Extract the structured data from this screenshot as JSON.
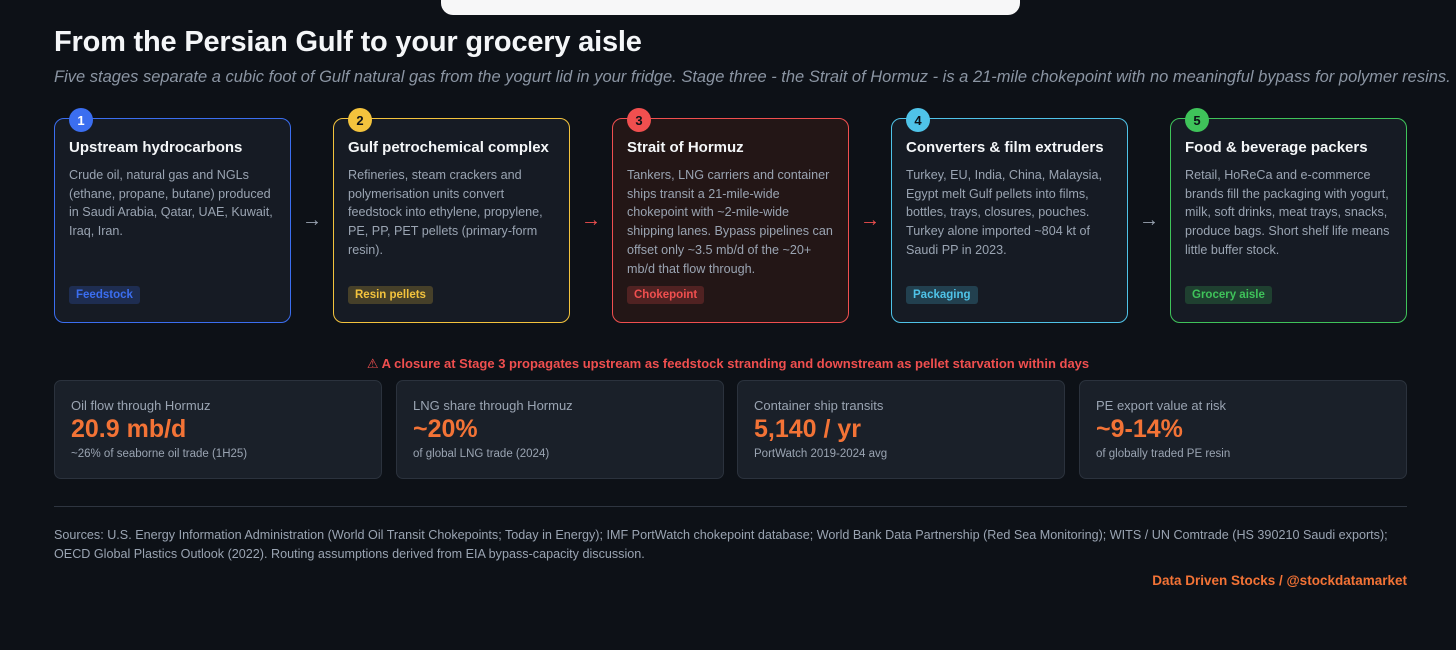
{
  "title": "From the Persian Gulf to your grocery aisle",
  "subtitle": "Five stages separate a cubic foot of Gulf natural gas from the yogurt lid in your fridge. Stage three - the Strait of Hormuz - is a 21-mile chokepoint with no meaningful bypass for polymer resins.",
  "stages": [
    {
      "number": "1",
      "title": "Upstream hydrocarbons",
      "description": "Crude oil, natural gas and NGLs (ethane, propane, butane) produced in Saudi Arabia, Qatar, UAE, Kuwait, Iraq, Iran.",
      "tag": "Feedstock",
      "color": "#3b6ef0"
    },
    {
      "number": "2",
      "title": "Gulf petrochemical complex",
      "description": "Refineries, steam crackers and polymerisation units convert feedstock into ethylene, propylene, PE, PP, PET pellets (primary-form resin).",
      "tag": "Resin pellets",
      "color": "#f3c33d"
    },
    {
      "number": "3",
      "title": "Strait of Hormuz",
      "description": "Tankers, LNG carriers and container ships transit a 21-mile-wide chokepoint with ~2-mile-wide shipping lanes. Bypass pipelines can offset only ~3.5 mb/d of the ~20+ mb/d that flow through.",
      "tag": "Chokepoint",
      "color": "#f04f4f"
    },
    {
      "number": "4",
      "title": "Converters & film extruders",
      "description": "Turkey, EU, India, China, Malaysia, Egypt melt Gulf pellets into films, bottles, trays, closures, pouches. Turkey alone imported ~804 kt of Saudi PP in 2023.",
      "tag": "Packaging",
      "color": "#4fc3e8"
    },
    {
      "number": "5",
      "title": "Food & beverage packers",
      "description": "Retail, HoReCa and e-commerce brands fill the packaging with yogurt, milk, soft drinks, meat trays, snacks, produce bags. Short shelf life means little buffer stock.",
      "tag": "Grocery aisle",
      "color": "#3fc35a"
    }
  ],
  "arrows": [
    {
      "glyph": "→",
      "color": "#9aa4b2"
    },
    {
      "glyph": "→",
      "color": "#f04f4f"
    },
    {
      "glyph": "→",
      "color": "#f04f4f"
    },
    {
      "glyph": "→",
      "color": "#9aa4b2"
    }
  ],
  "warning": "⚠ A closure at Stage 3 propagates upstream as feedstock stranding and downstream as pellet starvation within days",
  "stats": [
    {
      "label": "Oil flow through Hormuz",
      "value": "20.9 mb/d",
      "note": "~26% of seaborne oil trade (1H25)"
    },
    {
      "label": "LNG share through Hormuz",
      "value": "~20%",
      "note": "of global LNG trade (2024)"
    },
    {
      "label": "Container ship transits",
      "value": "5,140 / yr",
      "note": "PortWatch 2019-2024 avg"
    },
    {
      "label": "PE export value at risk",
      "value": "~9-14%",
      "note": "of globally traded PE resin"
    }
  ],
  "sources": "Sources: U.S. Energy Information Administration (World Oil Transit Chokepoints; Today in Energy); IMF PortWatch chokepoint database; World Bank Data Partnership (Red Sea Monitoring); WITS / UN Comtrade (HS 390210 Saudi exports); OECD Global Plastics Outlook (2022). Routing assumptions derived from EIA bypass-capacity discussion.",
  "credit": "Data Driven Stocks / @stockdatamarket"
}
